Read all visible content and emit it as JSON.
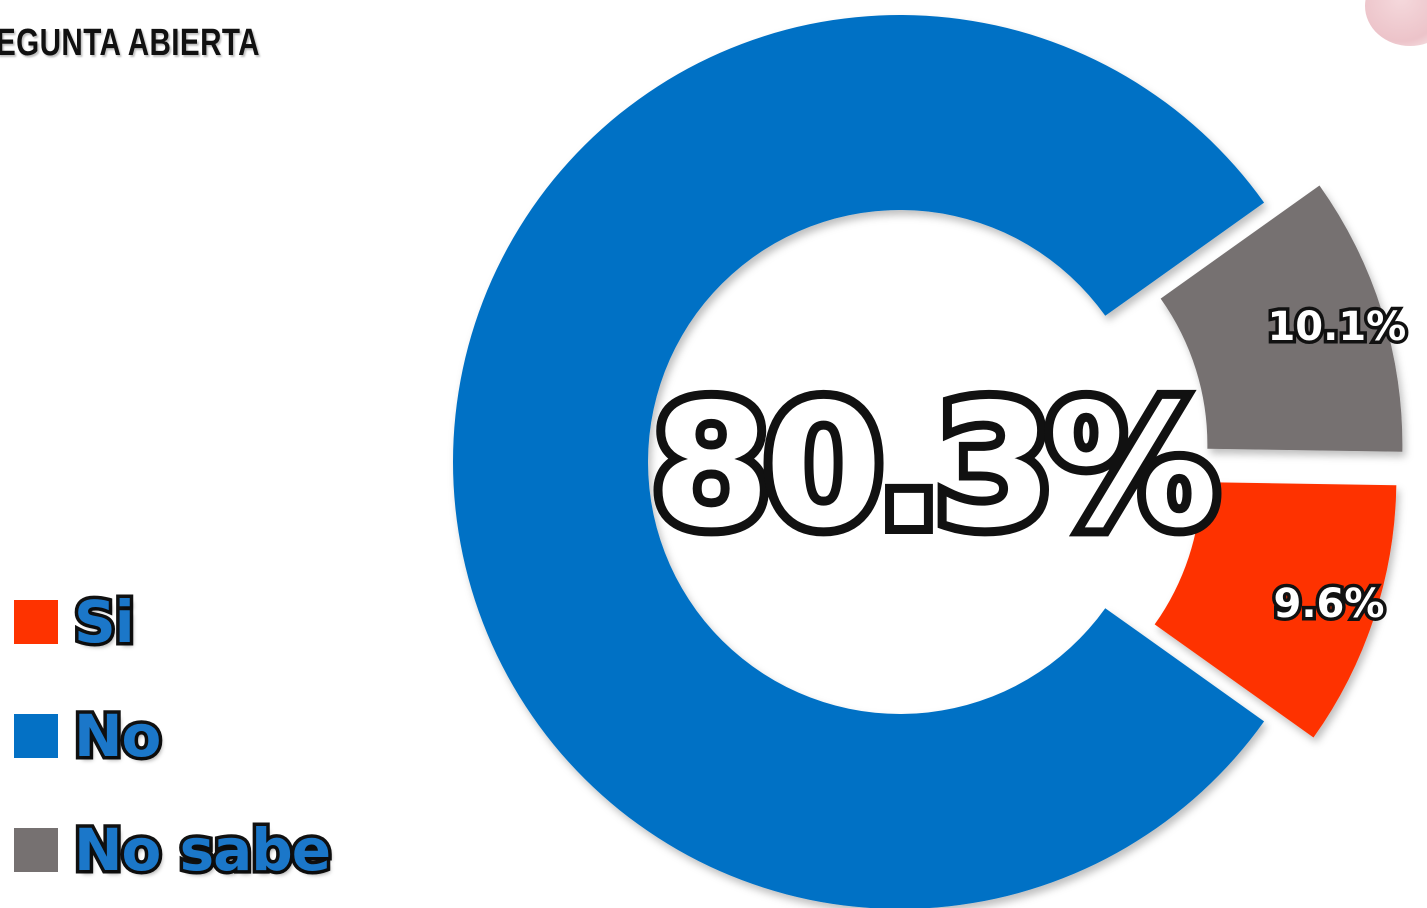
{
  "header": {
    "label": "EGUNTA  ABIERTA"
  },
  "chart_data": {
    "type": "pie",
    "variant": "donut",
    "center_label": "80.3%",
    "slices": [
      {
        "name": "No",
        "value": 80.3,
        "label": "",
        "color": "#0471c5"
      },
      {
        "name": "No sabe",
        "value": 10.1,
        "label": "10.1%",
        "color": "#767171"
      },
      {
        "name": "Si",
        "value": 9.6,
        "label": "9.6%",
        "color": "#fe3300"
      }
    ],
    "legend": {
      "placement": "bottom-left",
      "entries": [
        {
          "name": "Si",
          "color": "#fe3300"
        },
        {
          "name": "No",
          "color": "#0471c5"
        },
        {
          "name": "No sabe",
          "color": "#767171"
        }
      ]
    }
  }
}
